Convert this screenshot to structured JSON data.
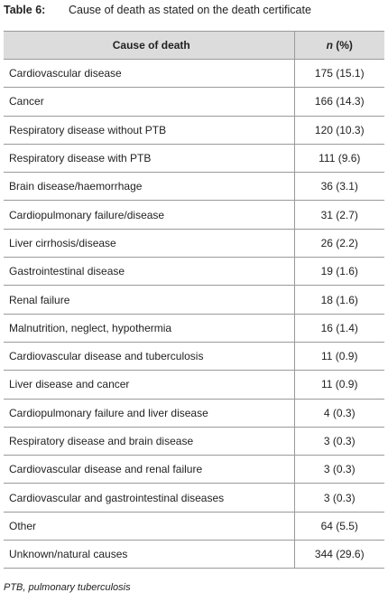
{
  "table": {
    "label": "Table 6:",
    "caption": "Cause of death as stated on the death certificate",
    "columns": [
      "Cause of death",
      [
        "n",
        "(%)"
      ]
    ],
    "rows": [
      [
        "Cardiovascular disease",
        "175 (15.1)"
      ],
      [
        "Cancer",
        "166 (14.3)"
      ],
      [
        "Respiratory disease without PTB",
        "120 (10.3)"
      ],
      [
        "Respiratory disease with PTB",
        "111 (9.6)"
      ],
      [
        "Brain disease/haemorrhage",
        "36 (3.1)"
      ],
      [
        "Cardiopulmonary failure/disease",
        "31 (2.7)"
      ],
      [
        "Liver cirrhosis/disease",
        "26 (2.2)"
      ],
      [
        "Gastrointestinal disease",
        "19 (1.6)"
      ],
      [
        "Renal failure",
        "18 (1.6)"
      ],
      [
        "Malnutrition, neglect, hypothermia",
        "16 (1.4)"
      ],
      [
        "Cardiovascular disease and tuberculosis",
        "11 (0.9)"
      ],
      [
        "Liver disease and cancer",
        "11 (0.9)"
      ],
      [
        "Cardiopulmonary failure and liver disease",
        "4 (0.3)"
      ],
      [
        "Respiratory disease and brain disease",
        "3 (0.3)"
      ],
      [
        "Cardiovascular disease and renal failure",
        "3 (0.3)"
      ],
      [
        "Cardiovascular and gastrointestinal diseases",
        "3 (0.3)"
      ],
      [
        "Other",
        "64 (5.5)"
      ],
      [
        "Unknown/natural causes",
        "344 (29.6)"
      ]
    ],
    "footnote": "PTB, pulmonary tuberculosis"
  }
}
